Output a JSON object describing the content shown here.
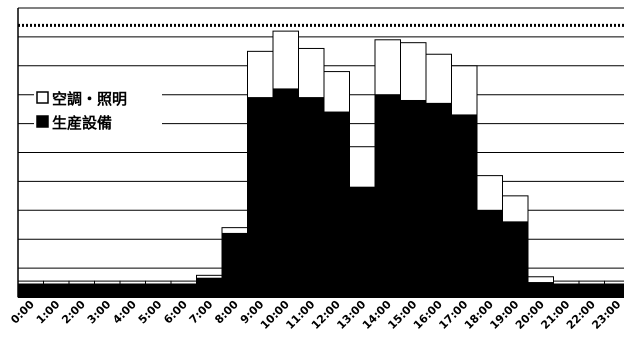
{
  "chart_data": {
    "type": "bar",
    "stacked": true,
    "categories": [
      "0:00",
      "1:00",
      "2:00",
      "3:00",
      "4:00",
      "5:00",
      "6:00",
      "7:00",
      "8:00",
      "9:00",
      "10:00",
      "11:00",
      "12:00",
      "13:00",
      "14:00",
      "15:00",
      "16:00",
      "17:00",
      "18:00",
      "19:00",
      "20:00",
      "21:00",
      "22:00",
      "23:00"
    ],
    "series": [
      {
        "name": "生産設備",
        "color": "#000000",
        "values": [
          4.5,
          4.5,
          4.5,
          4.5,
          4.5,
          4.5,
          4.5,
          6.5,
          22,
          69,
          72,
          69,
          64,
          38,
          70,
          68,
          67,
          63,
          30,
          26,
          5,
          4.5,
          4.5,
          4.5
        ]
      },
      {
        "name": "空調・照明",
        "color": "#ffffff",
        "values": [
          1,
          1,
          1,
          1,
          1,
          1,
          1,
          1,
          2,
          16,
          20,
          17,
          14,
          14,
          19,
          20,
          17,
          17,
          12,
          9,
          2,
          1,
          1,
          1
        ]
      }
    ],
    "legend": {
      "position": "top-left",
      "order": [
        "空調・照明",
        "生産設備"
      ]
    },
    "ylim": [
      0,
      100
    ],
    "grid": true,
    "reference_line": {
      "value": 94,
      "style": "dotted"
    }
  }
}
